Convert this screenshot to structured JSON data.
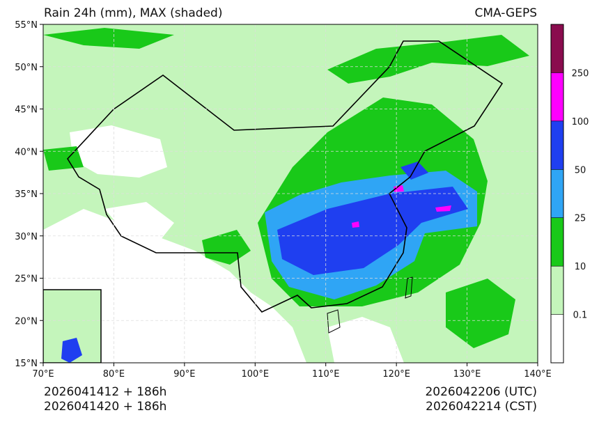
{
  "header": {
    "title": "Rain 24h (mm), MAX (shaded)",
    "source": "CMA-GEPS"
  },
  "map": {
    "lonlim": [
      70,
      140
    ],
    "latlim": [
      15,
      55
    ],
    "lat_ticks": [
      {
        "value": 15,
        "label": "15°N"
      },
      {
        "value": 20,
        "label": "20°N"
      },
      {
        "value": 25,
        "label": "25°N"
      },
      {
        "value": 30,
        "label": "30°N"
      },
      {
        "value": 35,
        "label": "35°N"
      },
      {
        "value": 40,
        "label": "40°N"
      },
      {
        "value": 45,
        "label": "45°N"
      },
      {
        "value": 50,
        "label": "50°N"
      },
      {
        "value": 55,
        "label": "55°N"
      }
    ],
    "lon_ticks": [
      {
        "value": 70,
        "label": "70°E"
      },
      {
        "value": 80,
        "label": "80°E"
      },
      {
        "value": 90,
        "label": "90°E"
      },
      {
        "value": 100,
        "label": "100°E"
      },
      {
        "value": 110,
        "label": "110°E"
      },
      {
        "value": 120,
        "label": "120°E"
      },
      {
        "value": 130,
        "label": "130°E"
      },
      {
        "value": 140,
        "label": "140°E"
      }
    ],
    "grid": true
  },
  "colorbar": {
    "levels": [
      0.1,
      10,
      25,
      50,
      100,
      250
    ],
    "colors": [
      "#ffffff",
      "#c4f5bb",
      "#19c919",
      "#2fa5f5",
      "#1f3ff0",
      "#ff00ff",
      "#8a0c4e"
    ]
  },
  "footer": {
    "init_utc": "2026041412 + 186h",
    "init_cst": "2026041420 + 186h",
    "valid_utc": "2026042206 (UTC)",
    "valid_cst": "2026042214 (CST)"
  }
}
